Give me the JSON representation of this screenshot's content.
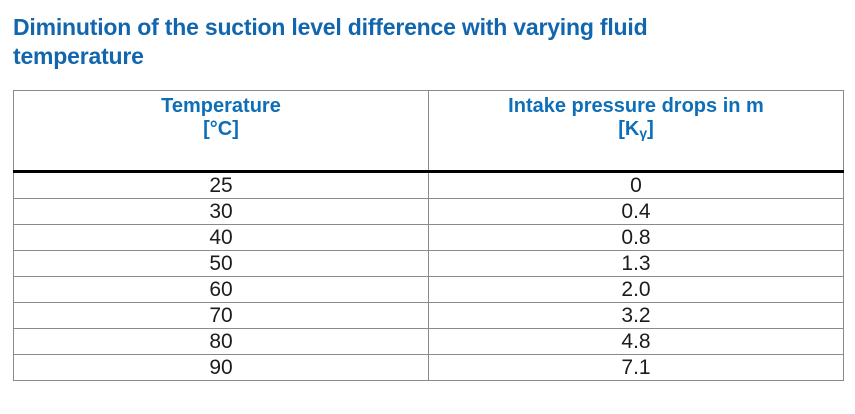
{
  "title": {
    "line1": "Diminution of the suction level difference with varying fluid",
    "line2": "temperature"
  },
  "table": {
    "headers": [
      {
        "label": "Temperature",
        "unit": "[°C]"
      },
      {
        "label": "Intake pressure drops in m",
        "unit_prefix": "[K",
        "unit_sub": "γ",
        "unit_suffix": "]"
      }
    ],
    "rows": [
      {
        "temperature": "25",
        "pressure": "0"
      },
      {
        "temperature": "30",
        "pressure": "0.4"
      },
      {
        "temperature": "40",
        "pressure": "0.8"
      },
      {
        "temperature": "50",
        "pressure": "1.3"
      },
      {
        "temperature": "60",
        "pressure": "2.0"
      },
      {
        "temperature": "70",
        "pressure": "3.2"
      },
      {
        "temperature": "80",
        "pressure": "4.8"
      },
      {
        "temperature": "90",
        "pressure": "7.1"
      }
    ]
  },
  "colors": {
    "title_blue": "#1266ae",
    "header_blue": "#0e6fb8",
    "grid_gray": "#8a8a8a",
    "header_separator_black": "#000000",
    "background": "#ffffff"
  },
  "chart_data": {
    "type": "table",
    "title": "Diminution of the suction level difference with varying fluid temperature",
    "columns": [
      "Temperature [°C]",
      "Intake pressure drops in m [Kγ]"
    ],
    "temperature_c": [
      25,
      30,
      40,
      50,
      60,
      70,
      80,
      90
    ],
    "intake_pressure_drop_m": [
      0,
      0.4,
      0.8,
      1.3,
      2.0,
      3.2,
      4.8,
      7.1
    ]
  }
}
